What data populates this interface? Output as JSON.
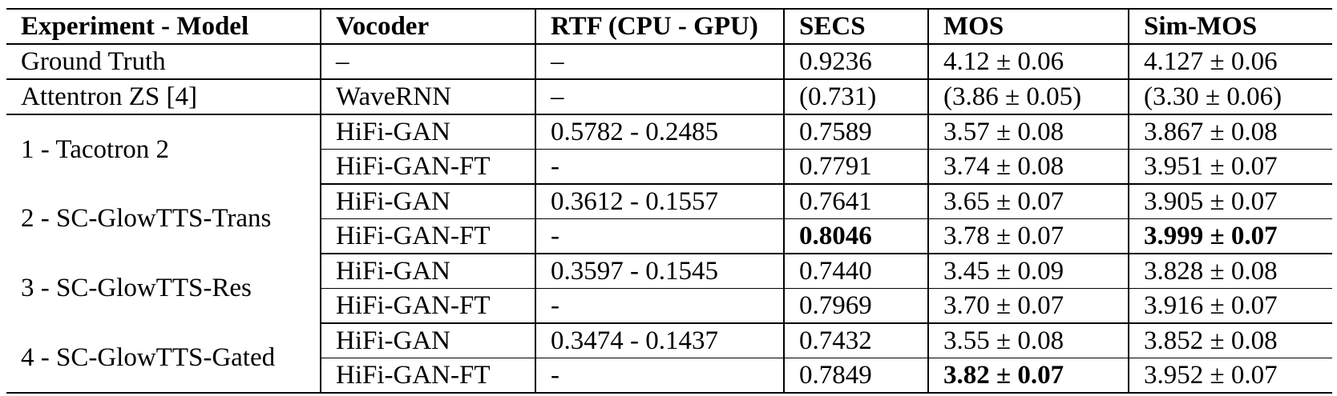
{
  "table": {
    "columns": {
      "model": "Experiment - Model",
      "vocoder": "Vocoder",
      "rtf": "RTF (CPU - GPU)",
      "secs": "SECS",
      "mos": "MOS",
      "sim_mos": "Sim-MOS"
    },
    "rows": [
      {
        "model": "Ground Truth",
        "vocoder": "–",
        "rtf": "–",
        "secs": "0.9236",
        "mos": "4.12 ± 0.06",
        "sim_mos": "4.127 ± 0.06"
      },
      {
        "model": "Attentron ZS [4]",
        "vocoder": "WaveRNN",
        "rtf": "–",
        "secs": "(0.731)",
        "mos": "(3.86 ± 0.05)",
        "sim_mos": "(3.30 ± 0.06)"
      },
      {
        "model": "1 - Tacotron 2",
        "vocoder": "HiFi-GAN",
        "rtf": "0.5782 - 0.2485",
        "secs": "0.7589",
        "mos": "3.57 ± 0.08",
        "sim_mos": "3.867 ± 0.08"
      },
      {
        "vocoder": "HiFi-GAN-FT",
        "rtf": "-",
        "secs": "0.7791",
        "mos": "3.74 ± 0.08",
        "sim_mos": "3.951 ± 0.07"
      },
      {
        "model": "2 - SC-GlowTTS-Trans",
        "vocoder": "HiFi-GAN",
        "rtf": "0.3612 - 0.1557",
        "secs": "0.7641",
        "mos": "3.65 ± 0.07",
        "sim_mos": "3.905 ± 0.07"
      },
      {
        "vocoder": "HiFi-GAN-FT",
        "rtf": "-",
        "secs": "0.8046",
        "mos": "3.78 ± 0.07",
        "sim_mos": "3.999 ± 0.07"
      },
      {
        "model": "3 - SC-GlowTTS-Res",
        "vocoder": "HiFi-GAN",
        "rtf": "0.3597 - 0.1545",
        "secs": "0.7440",
        "mos": "3.45 ± 0.09",
        "sim_mos": "3.828 ± 0.08"
      },
      {
        "vocoder": "HiFi-GAN-FT",
        "rtf": "-",
        "secs": "0.7969",
        "mos": "3.70 ± 0.07",
        "sim_mos": "3.916 ± 0.07"
      },
      {
        "model": "4 - SC-GlowTTS-Gated",
        "vocoder": "HiFi-GAN",
        "rtf": "0.3474 - 0.1437",
        "secs": "0.7432",
        "mos": "3.55 ± 0.08",
        "sim_mos": "3.852 ± 0.08"
      },
      {
        "vocoder": "HiFi-GAN-FT",
        "rtf": "-",
        "secs": "0.7849",
        "mos": "3.82 ± 0.07",
        "sim_mos": "3.952 ± 0.07"
      }
    ]
  }
}
